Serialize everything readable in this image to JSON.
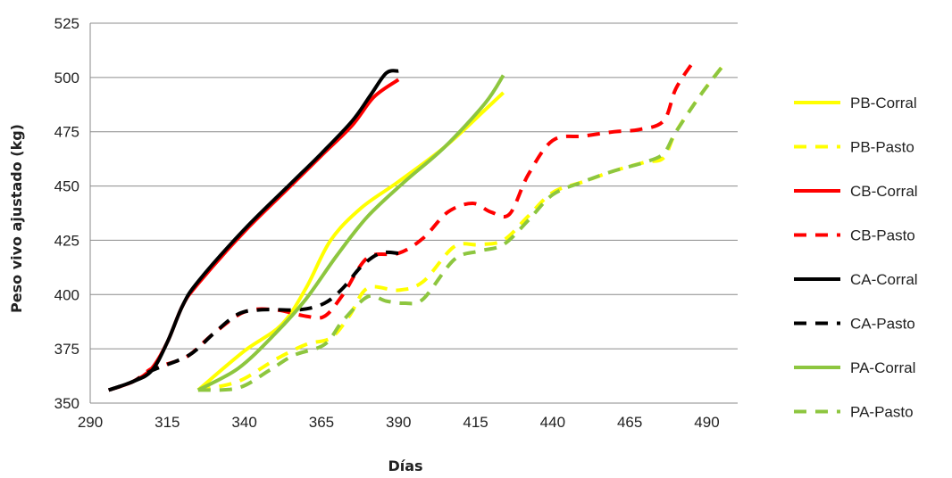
{
  "chart_data": {
    "type": "line",
    "title": "",
    "xlabel": "Días",
    "ylabel": "Peso vivo ajustado (kg)",
    "xlim": [
      290,
      500
    ],
    "ylim": [
      350,
      525
    ],
    "xticks": [
      290,
      315,
      340,
      365,
      390,
      415,
      440,
      465,
      490
    ],
    "yticks": [
      350,
      375,
      400,
      425,
      450,
      475,
      500,
      525
    ],
    "grid": "horizontal",
    "legend": "right",
    "series": [
      {
        "name": "PB-Corral",
        "color": "#ffff00",
        "dash": false,
        "points": [
          [
            325,
            356
          ],
          [
            340,
            374
          ],
          [
            352,
            386
          ],
          [
            360,
            403
          ],
          [
            368,
            425
          ],
          [
            378,
            440
          ],
          [
            390,
            452
          ],
          [
            405,
            468
          ],
          [
            418,
            485
          ],
          [
            424,
            493
          ]
        ]
      },
      {
        "name": "PB-Pasto",
        "color": "#ffff00",
        "dash": true,
        "points": [
          [
            325,
            356
          ],
          [
            338,
            360
          ],
          [
            350,
            370
          ],
          [
            360,
            377
          ],
          [
            368,
            380
          ],
          [
            374,
            390
          ],
          [
            380,
            403
          ],
          [
            390,
            402
          ],
          [
            398,
            406
          ],
          [
            408,
            422
          ],
          [
            416,
            423
          ],
          [
            424,
            425
          ],
          [
            432,
            436
          ],
          [
            440,
            447
          ],
          [
            450,
            452
          ],
          [
            460,
            457
          ],
          [
            470,
            461
          ],
          [
            476,
            463
          ],
          [
            480,
            475
          ],
          [
            488,
            492
          ],
          [
            495,
            505
          ]
        ]
      },
      {
        "name": "CB-Corral",
        "color": "#ff0000",
        "dash": false,
        "points": [
          [
            296,
            356
          ],
          [
            304,
            360
          ],
          [
            310,
            366
          ],
          [
            315,
            378
          ],
          [
            320,
            395
          ],
          [
            325,
            405
          ],
          [
            340,
            429
          ],
          [
            355,
            450
          ],
          [
            365,
            464
          ],
          [
            375,
            478
          ],
          [
            382,
            491
          ],
          [
            390,
            499
          ]
        ]
      },
      {
        "name": "CB-Pasto",
        "color": "#ff0000",
        "dash": true,
        "points": [
          [
            296,
            356
          ],
          [
            304,
            360
          ],
          [
            310,
            366
          ],
          [
            315,
            368
          ],
          [
            322,
            372
          ],
          [
            330,
            382
          ],
          [
            340,
            392
          ],
          [
            350,
            393
          ],
          [
            360,
            390
          ],
          [
            366,
            390
          ],
          [
            372,
            400
          ],
          [
            380,
            417
          ],
          [
            390,
            419
          ],
          [
            398,
            426
          ],
          [
            406,
            438
          ],
          [
            414,
            442
          ],
          [
            420,
            438
          ],
          [
            426,
            437
          ],
          [
            432,
            455
          ],
          [
            440,
            471
          ],
          [
            450,
            473
          ],
          [
            460,
            475
          ],
          [
            468,
            476
          ],
          [
            476,
            480
          ],
          [
            480,
            495
          ],
          [
            486,
            508
          ]
        ]
      },
      {
        "name": "CA-Corral",
        "color": "#000000",
        "dash": false,
        "points": [
          [
            296,
            356
          ],
          [
            304,
            360
          ],
          [
            310,
            365
          ],
          [
            315,
            378
          ],
          [
            320,
            395
          ],
          [
            325,
            406
          ],
          [
            340,
            430
          ],
          [
            355,
            451
          ],
          [
            365,
            465
          ],
          [
            375,
            480
          ],
          [
            381,
            492
          ],
          [
            386,
            502
          ],
          [
            390,
            503
          ]
        ]
      },
      {
        "name": "CA-Pasto",
        "color": "#000000",
        "dash": true,
        "points": [
          [
            296,
            356
          ],
          [
            304,
            360
          ],
          [
            310,
            365
          ],
          [
            322,
            372
          ],
          [
            330,
            382
          ],
          [
            338,
            391
          ],
          [
            346,
            393
          ],
          [
            358,
            393
          ],
          [
            366,
            396
          ],
          [
            372,
            403
          ],
          [
            378,
            413
          ],
          [
            384,
            419
          ],
          [
            390,
            419
          ]
        ]
      },
      {
        "name": "PA-Corral",
        "color": "#8dc63f",
        "dash": false,
        "points": [
          [
            325,
            356
          ],
          [
            338,
            366
          ],
          [
            350,
            382
          ],
          [
            360,
            398
          ],
          [
            370,
            418
          ],
          [
            380,
            436
          ],
          [
            392,
            452
          ],
          [
            405,
            468
          ],
          [
            418,
            488
          ],
          [
            424,
            501
          ]
        ]
      },
      {
        "name": "PA-Pasto",
        "color": "#8dc63f",
        "dash": true,
        "points": [
          [
            325,
            356
          ],
          [
            338,
            357
          ],
          [
            348,
            365
          ],
          [
            356,
            372
          ],
          [
            366,
            377
          ],
          [
            372,
            388
          ],
          [
            380,
            399
          ],
          [
            386,
            397
          ],
          [
            392,
            396
          ],
          [
            398,
            398
          ],
          [
            408,
            416
          ],
          [
            416,
            420
          ],
          [
            424,
            423
          ],
          [
            432,
            434
          ],
          [
            440,
            446
          ],
          [
            450,
            452
          ],
          [
            460,
            457
          ],
          [
            470,
            461
          ],
          [
            476,
            465
          ],
          [
            480,
            475
          ],
          [
            488,
            492
          ],
          [
            495,
            505
          ]
        ]
      }
    ]
  }
}
